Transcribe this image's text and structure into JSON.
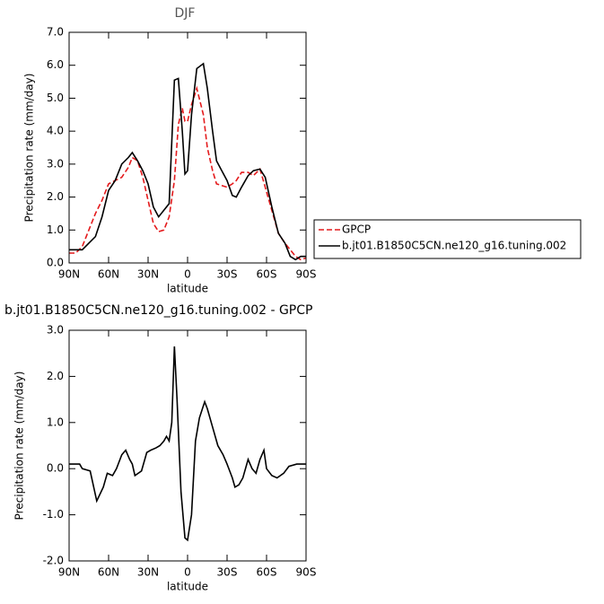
{
  "chart_data": [
    {
      "type": "line",
      "title": "DJF",
      "xlabel": "latitude",
      "ylabel": "Precipitation rate (mm/day)",
      "x": [
        90,
        85,
        80,
        75,
        70,
        65,
        60,
        55,
        50,
        45,
        42,
        38,
        34,
        30,
        26,
        22,
        18,
        14,
        10,
        7,
        4,
        2,
        0,
        -3,
        -7,
        -12,
        -15,
        -19,
        -22,
        -26,
        -30,
        -34,
        -37,
        -41,
        -46,
        -50,
        -55,
        -59,
        -64,
        -69,
        -74,
        -78,
        -82,
        -86,
        -90
      ],
      "series": [
        {
          "name": "GPCP",
          "color": "#e41a1c",
          "linestyle": "dashed",
          "values": [
            0.3,
            0.3,
            0.5,
            1.0,
            1.5,
            1.9,
            2.4,
            2.5,
            2.6,
            2.9,
            3.2,
            3.1,
            2.6,
            1.9,
            1.2,
            0.95,
            1.0,
            1.4,
            2.5,
            4.2,
            4.7,
            4.3,
            4.3,
            4.8,
            5.3,
            4.5,
            3.5,
            2.8,
            2.4,
            2.35,
            2.3,
            2.4,
            2.5,
            2.75,
            2.75,
            2.65,
            2.85,
            2.3,
            1.6,
            0.9,
            0.6,
            0.4,
            0.2,
            0.1,
            0.15
          ]
        },
        {
          "name": "b.jt01.B1850C5CN.ne120_g16.tuning.002",
          "color": "#000000",
          "linestyle": "solid",
          "values": [
            0.4,
            0.4,
            0.4,
            0.6,
            0.8,
            1.4,
            2.2,
            2.5,
            3.0,
            3.2,
            3.35,
            3.1,
            2.8,
            2.4,
            1.7,
            1.4,
            1.6,
            1.8,
            5.55,
            5.6,
            4.0,
            2.7,
            2.8,
            4.5,
            5.9,
            6.05,
            5.3,
            4.0,
            3.1,
            2.8,
            2.5,
            2.05,
            2.0,
            2.3,
            2.65,
            2.8,
            2.85,
            2.6,
            1.7,
            0.9,
            0.6,
            0.2,
            0.1,
            0.2,
            0.2
          ]
        }
      ],
      "xlim": [
        90,
        -90
      ],
      "xticks": [
        {
          "value": 90,
          "label": "90N"
        },
        {
          "value": 60,
          "label": "60N"
        },
        {
          "value": 30,
          "label": "30N"
        },
        0,
        {
          "value": -30,
          "label": "30S"
        },
        {
          "value": -60,
          "label": "60S"
        },
        {
          "value": -90,
          "label": "90S"
        }
      ],
      "ylim": [
        0,
        7
      ],
      "yticks": [
        {
          "value": 0,
          "label": "0.0"
        },
        {
          "value": 1,
          "label": "1.0"
        },
        {
          "value": 2,
          "label": "2.0"
        },
        {
          "value": 3,
          "label": "3.0"
        },
        {
          "value": 4,
          "label": "4.0"
        },
        {
          "value": 5,
          "label": "5.0"
        },
        {
          "value": 6,
          "label": "6.0"
        },
        {
          "value": 7,
          "label": "7.0"
        }
      ],
      "legend": "right"
    },
    {
      "type": "line",
      "title": "b.jt01.B1850C5CN.ne120_g16.tuning.002 - GPCP",
      "xlabel": "latitude",
      "ylabel": "Precipitation rate (mm/day)",
      "x": [
        90,
        82,
        80,
        74,
        69,
        64,
        61,
        57,
        54,
        50,
        47,
        44,
        42,
        40,
        35,
        31,
        28,
        24,
        21,
        18,
        16,
        14,
        12,
        10,
        8,
        5,
        2,
        0,
        -3,
        -6,
        -9,
        -13,
        -15,
        -19,
        -23,
        -27,
        -30,
        -34,
        -36,
        -39,
        -42,
        -46,
        -49,
        -52,
        -55,
        -58,
        -60,
        -64,
        -68,
        -73,
        -77,
        -83,
        -90
      ],
      "values": [
        0.1,
        0.1,
        0.0,
        -0.05,
        -0.7,
        -0.4,
        -0.1,
        -0.15,
        0.0,
        0.3,
        0.4,
        0.2,
        0.1,
        -0.15,
        -0.05,
        0.35,
        0.4,
        0.45,
        0.5,
        0.6,
        0.7,
        0.6,
        1.0,
        2.65,
        1.5,
        -0.5,
        -1.5,
        -1.55,
        -1.0,
        0.6,
        1.1,
        1.45,
        1.3,
        0.9,
        0.5,
        0.3,
        0.1,
        -0.2,
        -0.4,
        -0.35,
        -0.2,
        0.2,
        0.0,
        -0.1,
        0.2,
        0.4,
        0.0,
        -0.15,
        -0.2,
        -0.1,
        0.05,
        0.1,
        0.1
      ],
      "color": "#000000",
      "xlim": [
        90,
        -90
      ],
      "xticks": [
        {
          "value": 90,
          "label": "90N"
        },
        {
          "value": 60,
          "label": "60N"
        },
        {
          "value": 30,
          "label": "30N"
        },
        0,
        {
          "value": -30,
          "label": "30S"
        },
        {
          "value": -60,
          "label": "60S"
        },
        {
          "value": -90,
          "label": "90S"
        }
      ],
      "ylim": [
        -2,
        3
      ],
      "yticks": [
        {
          "value": -2,
          "label": "-2.0"
        },
        {
          "value": -1,
          "label": "-1.0"
        },
        {
          "value": 0,
          "label": "0.0"
        },
        {
          "value": 1,
          "label": "1.0"
        },
        {
          "value": 2,
          "label": "2.0"
        },
        {
          "value": 3,
          "label": "3.0"
        }
      ]
    }
  ]
}
